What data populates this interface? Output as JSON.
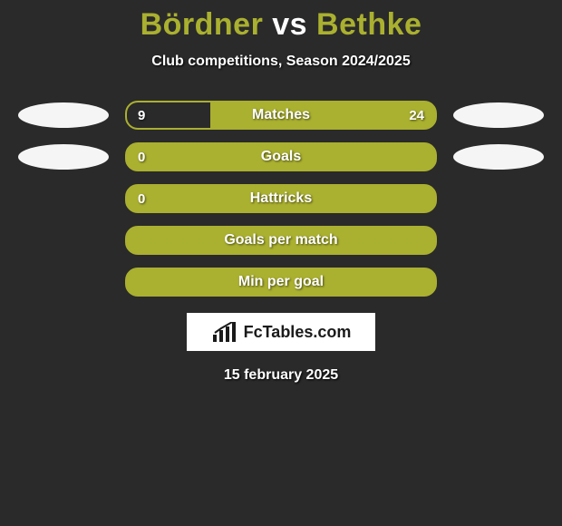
{
  "title_color": "#aab02f",
  "player_left": "Bördner",
  "vs_text": "vs",
  "player_right": "Bethke",
  "subtitle": "Club competitions, Season 2024/2025",
  "bar_border_color": "#aab02f",
  "bar_fill_color": "#aab02f",
  "bar_empty_color": "#2a2a2a",
  "avatar_color": "#f5f5f5",
  "label_fontsize": 16,
  "rows": [
    {
      "label": "Matches",
      "left_value": "9",
      "right_value": "24",
      "left_pct": 27,
      "right_pct": 73,
      "show_avatars": true
    },
    {
      "label": "Goals",
      "left_value": "0",
      "right_value": "",
      "left_pct": 0,
      "right_pct": 100,
      "show_avatars": true
    },
    {
      "label": "Hattricks",
      "left_value": "0",
      "right_value": "",
      "left_pct": 0,
      "right_pct": 100,
      "show_avatars": false
    },
    {
      "label": "Goals per match",
      "left_value": "",
      "right_value": "",
      "left_pct": 0,
      "right_pct": 100,
      "show_avatars": false
    },
    {
      "label": "Min per goal",
      "left_value": "",
      "right_value": "",
      "left_pct": 0,
      "right_pct": 100,
      "show_avatars": false
    }
  ],
  "logo_text": "FcTables.com",
  "date_text": "15 february 2025"
}
